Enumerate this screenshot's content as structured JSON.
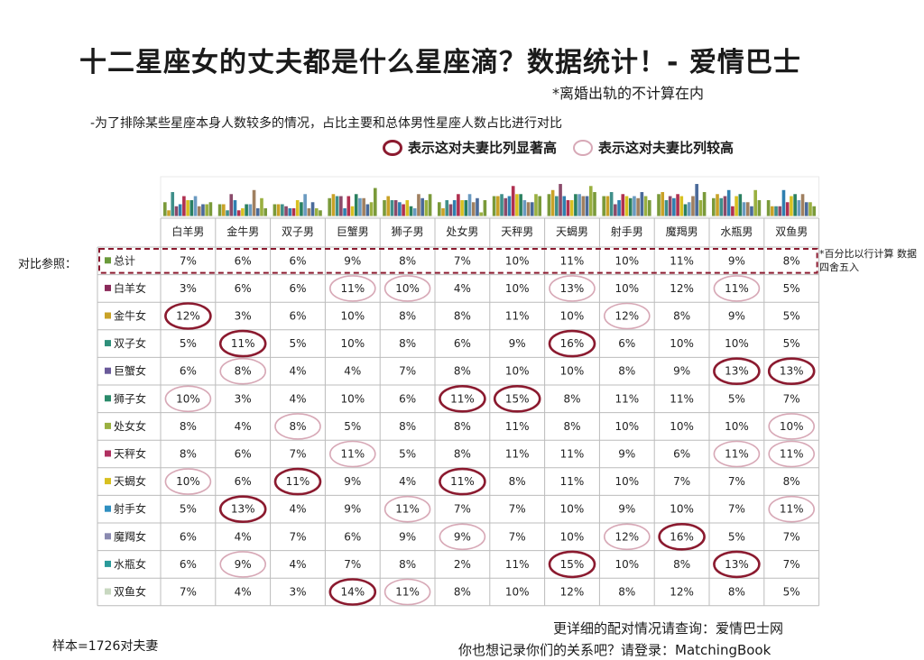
{
  "title": "十二星座女的丈夫都是什么星座滴？数据统计！- 爱情巴士",
  "note_divorce": "*离婚出轨的不计算在内",
  "note_method": "-为了排除某些星座本身人数较多的情况，占比主要和总体男性星座人数占比进行对比",
  "legend": {
    "strong": "表示这对夫妻比列显著高",
    "weak": "表示这对夫妻比列较高"
  },
  "reference_label": "对比参照：",
  "percent_note": "*百分比以行计算 数据四舍五入",
  "sample": "样本=1726对夫妻",
  "footer": {
    "line1": "更详细的配对情况请查询：爱情巴士网",
    "line2": "你也想记录你们的关系吧？请登录：MatchingBook"
  },
  "colors": {
    "strong_circle": "#8b1a2f",
    "weak_circle": "#d7a8b6",
    "grid": "#bcbcbc",
    "dashed_box": "#8b1a2f",
    "bar_palette": [
      "#7a9a3a",
      "#c9a227",
      "#3f8f8a",
      "#8a4a6a",
      "#2f7fb0",
      "#b03050",
      "#d8c020",
      "#2a8060",
      "#6a9ac0",
      "#a08060",
      "#4a6a9a",
      "#9ab040"
    ]
  },
  "chart_data": {
    "type": "table",
    "columns": [
      "白羊男",
      "金牛男",
      "双子男",
      "巨蟹男",
      "狮子男",
      "处女男",
      "天秤男",
      "天蝎男",
      "射手男",
      "魔羯男",
      "水瓶男",
      "双鱼男"
    ],
    "rows": [
      {
        "label": "总计",
        "swatch": "#6a9a3a",
        "values": [
          "7%",
          "6%",
          "6%",
          "9%",
          "8%",
          "7%",
          "10%",
          "11%",
          "10%",
          "11%",
          "9%",
          "8%"
        ],
        "highlight": [
          "",
          "",
          "",
          "",
          "",
          "",
          "",
          "",
          "",
          "",
          "",
          ""
        ]
      },
      {
        "label": "白羊女",
        "swatch": "#8a2a5a",
        "values": [
          "3%",
          "6%",
          "6%",
          "11%",
          "10%",
          "4%",
          "10%",
          "13%",
          "10%",
          "12%",
          "11%",
          "5%"
        ],
        "highlight": [
          "",
          "",
          "",
          "weak",
          "weak",
          "",
          "",
          "weak",
          "",
          "",
          "weak",
          ""
        ]
      },
      {
        "label": "金牛女",
        "swatch": "#c9a227",
        "values": [
          "12%",
          "3%",
          "6%",
          "10%",
          "8%",
          "8%",
          "11%",
          "10%",
          "12%",
          "8%",
          "9%",
          "5%"
        ],
        "highlight": [
          "strong",
          "",
          "",
          "",
          "",
          "",
          "",
          "",
          "weak",
          "",
          "",
          ""
        ]
      },
      {
        "label": "双子女",
        "swatch": "#2f8f7a",
        "values": [
          "5%",
          "11%",
          "5%",
          "10%",
          "8%",
          "6%",
          "9%",
          "16%",
          "6%",
          "10%",
          "10%",
          "5%"
        ],
        "highlight": [
          "",
          "strong",
          "",
          "",
          "",
          "",
          "",
          "strong",
          "",
          "",
          "",
          ""
        ]
      },
      {
        "label": "巨蟹女",
        "swatch": "#6a5a9a",
        "values": [
          "6%",
          "8%",
          "4%",
          "4%",
          "7%",
          "8%",
          "10%",
          "10%",
          "8%",
          "9%",
          "13%",
          "13%"
        ],
        "highlight": [
          "",
          "weak",
          "",
          "",
          "",
          "",
          "",
          "",
          "",
          "",
          "strong",
          "strong"
        ]
      },
      {
        "label": "狮子女",
        "swatch": "#2a8a6a",
        "values": [
          "10%",
          "3%",
          "4%",
          "10%",
          "6%",
          "11%",
          "15%",
          "8%",
          "11%",
          "11%",
          "5%",
          "7%"
        ],
        "highlight": [
          "weak",
          "",
          "",
          "",
          "",
          "strong",
          "strong",
          "",
          "",
          "",
          "",
          ""
        ]
      },
      {
        "label": "处女女",
        "swatch": "#9ab040",
        "values": [
          "8%",
          "4%",
          "8%",
          "5%",
          "8%",
          "8%",
          "11%",
          "8%",
          "10%",
          "10%",
          "10%",
          "10%"
        ],
        "highlight": [
          "",
          "",
          "weak",
          "",
          "",
          "",
          "",
          "",
          "",
          "",
          "",
          "weak"
        ]
      },
      {
        "label": "天秤女",
        "swatch": "#b03060",
        "values": [
          "8%",
          "6%",
          "7%",
          "11%",
          "5%",
          "8%",
          "11%",
          "11%",
          "9%",
          "6%",
          "11%",
          "11%"
        ],
        "highlight": [
          "",
          "",
          "",
          "weak",
          "",
          "",
          "",
          "",
          "",
          "",
          "weak",
          "weak"
        ]
      },
      {
        "label": "天蝎女",
        "swatch": "#d8c020",
        "values": [
          "10%",
          "6%",
          "11%",
          "9%",
          "4%",
          "11%",
          "8%",
          "11%",
          "10%",
          "7%",
          "7%",
          "8%"
        ],
        "highlight": [
          "weak",
          "",
          "strong",
          "",
          "",
          "strong",
          "",
          "",
          "",
          "",
          "",
          ""
        ]
      },
      {
        "label": "射手女",
        "swatch": "#2f8fc0",
        "values": [
          "5%",
          "13%",
          "4%",
          "9%",
          "11%",
          "7%",
          "7%",
          "10%",
          "9%",
          "10%",
          "7%",
          "11%"
        ],
        "highlight": [
          "",
          "strong",
          "",
          "",
          "weak",
          "",
          "",
          "",
          "",
          "",
          "",
          "weak"
        ]
      },
      {
        "label": "魔羯女",
        "swatch": "#8a8ab0",
        "values": [
          "6%",
          "4%",
          "7%",
          "6%",
          "9%",
          "9%",
          "7%",
          "10%",
          "12%",
          "16%",
          "5%",
          "7%"
        ],
        "highlight": [
          "",
          "",
          "",
          "",
          "",
          "weak",
          "",
          "",
          "weak",
          "strong",
          "",
          ""
        ]
      },
      {
        "label": "水瓶女",
        "swatch": "#2a9a9a",
        "values": [
          "6%",
          "9%",
          "4%",
          "7%",
          "8%",
          "2%",
          "11%",
          "15%",
          "10%",
          "8%",
          "13%",
          "7%"
        ],
        "highlight": [
          "",
          "weak",
          "",
          "",
          "",
          "",
          "",
          "strong",
          "",
          "",
          "strong",
          ""
        ]
      },
      {
        "label": "双鱼女",
        "swatch": "#c8d8c0",
        "values": [
          "7%",
          "4%",
          "3%",
          "14%",
          "11%",
          "8%",
          "10%",
          "12%",
          "8%",
          "12%",
          "8%",
          "5%"
        ],
        "highlight": [
          "",
          "",
          "",
          "strong",
          "weak",
          "",
          "",
          "",
          "",
          "",
          "",
          ""
        ]
      }
    ]
  }
}
